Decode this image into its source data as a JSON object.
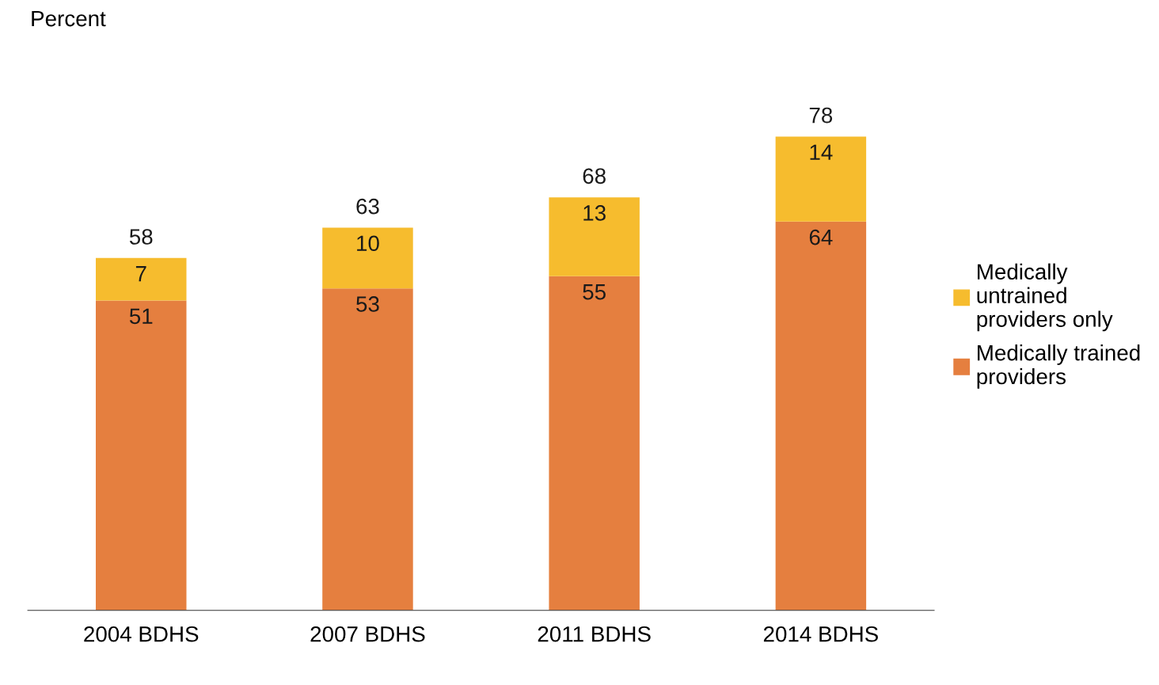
{
  "chart_data": {
    "type": "bar",
    "stacked": true,
    "annotations": [
      "Percent"
    ],
    "categories": [
      "2004 BDHS",
      "2007 BDHS",
      "2011 BDHS",
      "2014 BDHS"
    ],
    "series": [
      {
        "name": "Medically trained providers",
        "color": "#e57f3f",
        "values": [
          51,
          53,
          55,
          64
        ]
      },
      {
        "name": "Medically untrained providers only",
        "color": "#f6bc2e",
        "values": [
          7,
          10,
          13,
          14
        ]
      }
    ],
    "data_labels": true,
    "totals": [
      "58",
      "63",
      "68",
      "78"
    ],
    "legend": "right",
    "grid": false,
    "tick_labels": "x"
  }
}
